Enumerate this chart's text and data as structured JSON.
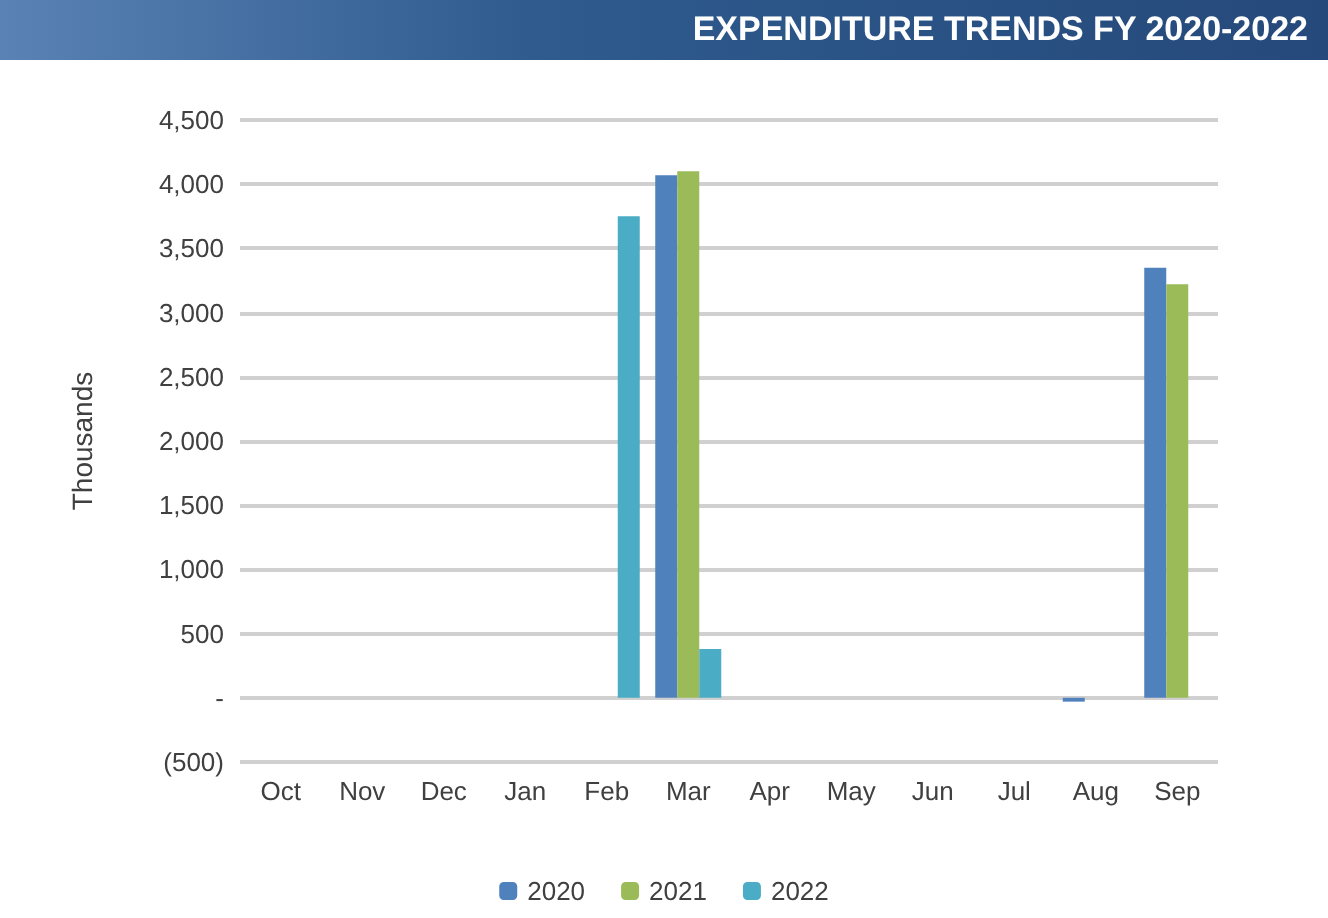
{
  "chart_data": {
    "type": "bar",
    "title": "EXPENDITURE TRENDS FY 2020-2022",
    "ylabel": "Thousands",
    "categories": [
      "Oct",
      "Nov",
      "Dec",
      "Jan",
      "Feb",
      "Mar",
      "Apr",
      "May",
      "Jun",
      "Jul",
      "Aug",
      "Sep"
    ],
    "series": [
      {
        "name": "2020",
        "color": "#4f81bd",
        "values": [
          0,
          0,
          0,
          0,
          0,
          4070,
          0,
          0,
          0,
          0,
          -30,
          3350
        ]
      },
      {
        "name": "2021",
        "color": "#9bbb59",
        "values": [
          0,
          0,
          0,
          0,
          0,
          4100,
          0,
          0,
          0,
          0,
          0,
          3220
        ]
      },
      {
        "name": "2022",
        "color": "#4bacc6",
        "values": [
          0,
          0,
          0,
          0,
          3750,
          380,
          0,
          0,
          null,
          0,
          0,
          0
        ]
      }
    ],
    "ylim": [
      -500,
      4500
    ],
    "yticks": [
      {
        "value": -500,
        "label": "(500)"
      },
      {
        "value": 0,
        "label": "-"
      },
      500,
      {
        "value": 1000,
        "label": "1,000"
      },
      {
        "value": 1500,
        "label": "1,500"
      },
      {
        "value": 2000,
        "label": "2,000"
      },
      {
        "value": 2500,
        "label": "2,500"
      },
      {
        "value": 3000,
        "label": "3,000"
      },
      {
        "value": 3500,
        "label": "3,500"
      },
      {
        "value": 4000,
        "label": "4,000"
      },
      {
        "value": 4500,
        "label": "4,500"
      }
    ],
    "grid": true,
    "legend": "bottom"
  }
}
